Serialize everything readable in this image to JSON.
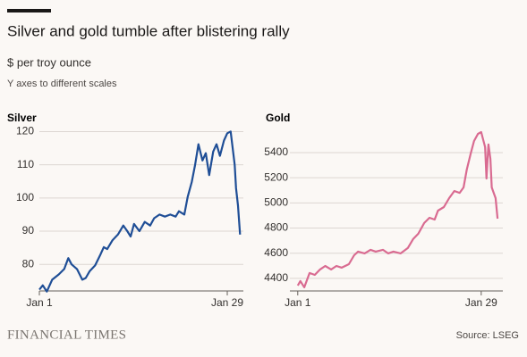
{
  "header": {
    "title": "Silver and gold tumble after blistering rally",
    "subtitle": "$ per troy ounce",
    "note": "Y axes to different scales"
  },
  "footer": {
    "brand": "FINANCIAL TIMES",
    "source": "Source: LSEG"
  },
  "chart_data": [
    {
      "type": "line",
      "title": "Silver",
      "color": "#1f4e96",
      "x": [
        1,
        1.5,
        2.1,
        2.9,
        3.9,
        4.7,
        5.3,
        5.8,
        6.6,
        7.4,
        7.9,
        8.5,
        9.3,
        10.1,
        10.6,
        11.1,
        11.9,
        12.7,
        13.5,
        14.1,
        14.6,
        15.1,
        15.9,
        16.7,
        17.5,
        18.1,
        18.9,
        19.7,
        20.5,
        21.3,
        21.8,
        22.6,
        23.1,
        23.7,
        24.2,
        24.7,
        25.3,
        25.8,
        26.3,
        26.9,
        27.4,
        27.9,
        28.5,
        29,
        29.5,
        30.1,
        30.3,
        30.6,
        30.9
      ],
      "values": [
        72.4,
        73.7,
        71.8,
        75.4,
        77,
        78.6,
        81.9,
        80,
        78.6,
        75.4,
        75.9,
        78,
        79.7,
        83,
        85.2,
        84.6,
        87.3,
        89,
        91.7,
        90,
        88.4,
        92.2,
        90,
        92.8,
        91.7,
        93.9,
        95,
        94.4,
        95,
        94.4,
        96,
        95,
        100.4,
        104.8,
        109.9,
        116.2,
        111.3,
        113.5,
        106.9,
        114,
        116.2,
        112.7,
        117.3,
        119.5,
        120,
        110,
        103,
        97.7,
        89
      ],
      "xlim": [
        1,
        31.4
      ],
      "xticks": [
        {
          "value": 1,
          "label": "Jan 1"
        },
        {
          "value": 29,
          "label": "Jan 29"
        }
      ],
      "ylim": [
        72,
        122
      ],
      "yticks": [
        80,
        90,
        100,
        110,
        120
      ],
      "grid": true
    },
    {
      "type": "line",
      "title": "Gold",
      "color": "#d96b91",
      "x": [
        1,
        1.4,
        2,
        2.8,
        3.6,
        4.4,
        5.2,
        6.1,
        6.9,
        7.7,
        8.8,
        9.6,
        10.2,
        11.2,
        12.1,
        12.9,
        14,
        14.8,
        15.6,
        16.7,
        17.8,
        18.6,
        19.4,
        20.3,
        21.1,
        21.9,
        22.4,
        23.3,
        24.1,
        24.9,
        25.7,
        26.3,
        26.8,
        27.4,
        27.9,
        28.5,
        29,
        29.6,
        29.8,
        30.1,
        30.4,
        30.6,
        31.2,
        31.5
      ],
      "values": [
        4343,
        4379,
        4329,
        4443,
        4428,
        4471,
        4499,
        4471,
        4499,
        4485,
        4513,
        4584,
        4613,
        4599,
        4627,
        4613,
        4627,
        4599,
        4613,
        4599,
        4641,
        4712,
        4755,
        4840,
        4882,
        4868,
        4939,
        4967,
        5038,
        5095,
        5080,
        5123,
        5265,
        5393,
        5492,
        5549,
        5563,
        5443,
        5194,
        5465,
        5350,
        5123,
        5038,
        4875
      ],
      "xlim": [
        -0.2,
        32.3
      ],
      "xticks": [
        {
          "value": 1,
          "label": "Jan 1"
        },
        {
          "value": 29,
          "label": "Jan 29"
        }
      ],
      "ylim": [
        4300,
        5620
      ],
      "yticks": [
        4400,
        4600,
        4800,
        5000,
        5200,
        5400
      ],
      "grid": true
    }
  ]
}
